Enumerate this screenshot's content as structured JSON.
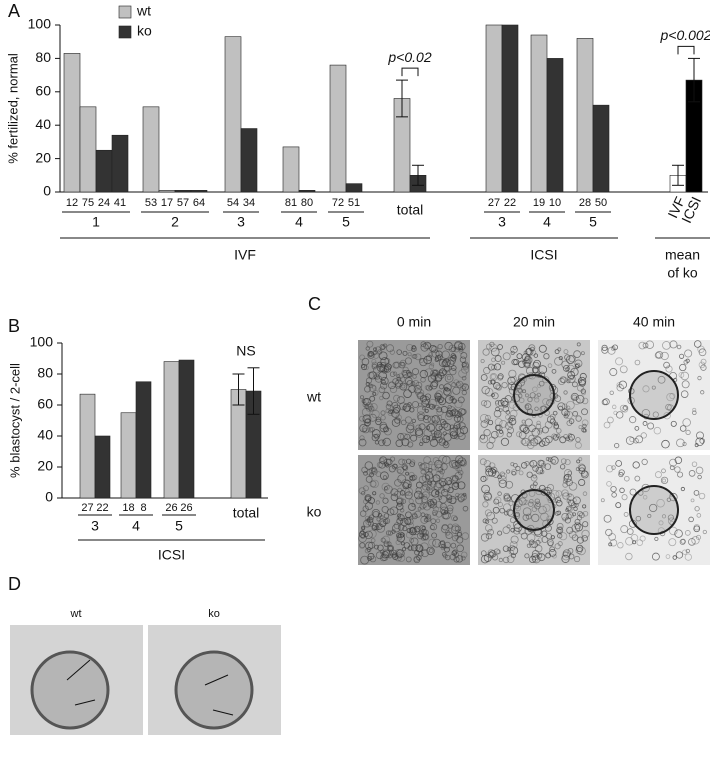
{
  "chart_data": [
    {
      "type": "bar",
      "panel_label": "A",
      "ylabel": "% fertilized, normal",
      "ylim": [
        0,
        100
      ],
      "yticks": [
        0,
        20,
        40,
        60,
        80,
        100
      ],
      "series": [
        {
          "name": "wt",
          "color": "#c0c0c0"
        },
        {
          "name": "ko",
          "color": "#333333"
        }
      ],
      "groups": [
        {
          "label": "1",
          "bars": [
            {
              "value": 83,
              "n": 12,
              "color": "#c0c0c0"
            },
            {
              "value": 51,
              "n": 75,
              "color": "#c0c0c0"
            },
            {
              "value": 25,
              "n": 24,
              "color": "#333333"
            },
            {
              "value": 34,
              "n": 41,
              "color": "#333333"
            }
          ]
        },
        {
          "label": "2",
          "bars": [
            {
              "value": 51,
              "n": 53,
              "color": "#c0c0c0"
            },
            {
              "value": 1,
              "n": 17,
              "color": "#c0c0c0"
            },
            {
              "value": 1,
              "n": 57,
              "color": "#333333"
            },
            {
              "value": 1,
              "n": 64,
              "color": "#333333"
            }
          ]
        },
        {
          "label": "3",
          "bars": [
            {
              "value": 93,
              "n": 54,
              "color": "#c0c0c0"
            },
            {
              "value": 38,
              "n": 34,
              "color": "#333333"
            }
          ]
        },
        {
          "label": "4",
          "bars": [
            {
              "value": 27,
              "n": 81,
              "color": "#c0c0c0"
            },
            {
              "value": 1,
              "n": 80,
              "color": "#333333"
            }
          ]
        },
        {
          "label": "5",
          "bars": [
            {
              "value": 76,
              "n": 72,
              "color": "#c0c0c0"
            },
            {
              "value": 5,
              "n": 51,
              "color": "#333333"
            }
          ]
        },
        {
          "label": "total",
          "annotation": "p<0.02",
          "annotation_bracket": true,
          "bars": [
            {
              "value": 56,
              "error": 11,
              "color": "#c0c0c0"
            },
            {
              "value": 10,
              "error": 6,
              "color": "#333333"
            }
          ]
        },
        {
          "label": "3",
          "bars": [
            {
              "value": 100,
              "n": 27,
              "color": "#c0c0c0"
            },
            {
              "value": 100,
              "n": 22,
              "color": "#333333"
            }
          ]
        },
        {
          "label": "4",
          "bars": [
            {
              "value": 94,
              "n": 19,
              "color": "#c0c0c0"
            },
            {
              "value": 80,
              "n": 10,
              "color": "#333333"
            }
          ]
        },
        {
          "label": "5",
          "bars": [
            {
              "value": 92,
              "n": 28,
              "color": "#c0c0c0"
            },
            {
              "value": 52,
              "n": 50,
              "color": "#333333"
            }
          ]
        },
        {
          "annotation": "p<0.002",
          "annotation_bracket": true,
          "bars": [
            {
              "value": 10,
              "error": 6,
              "label": "IVF",
              "color": "#ffffff"
            },
            {
              "value": 67,
              "error": 13,
              "label": "ICSI",
              "color": "#000000"
            }
          ]
        }
      ],
      "brackets": [
        {
          "label_lines": [
            "IVF"
          ]
        },
        {
          "label_lines": [
            "ICSI"
          ]
        },
        {
          "label_lines": [
            "mean",
            "of ko"
          ]
        }
      ]
    },
    {
      "type": "bar",
      "panel_label": "B",
      "ylabel": "% blastocyst / 2-cell",
      "ylim": [
        0,
        100
      ],
      "yticks": [
        0,
        20,
        40,
        60,
        80,
        100
      ],
      "groups": [
        {
          "label": "3",
          "bars": [
            {
              "value": 67,
              "n": 27,
              "color": "#c0c0c0"
            },
            {
              "value": 40,
              "n": 22,
              "color": "#333333"
            }
          ]
        },
        {
          "label": "4",
          "bars": [
            {
              "value": 55,
              "n": 18,
              "color": "#c0c0c0"
            },
            {
              "value": 75,
              "n": 8,
              "color": "#333333"
            }
          ]
        },
        {
          "label": "5",
          "bars": [
            {
              "value": 88,
              "n": 26,
              "color": "#c0c0c0"
            },
            {
              "value": 89,
              "n": 26,
              "color": "#333333"
            }
          ]
        },
        {
          "label": "total",
          "annotation": "NS",
          "annotation_bracket": false,
          "bars": [
            {
              "value": 70,
              "error": 10,
              "color": "#c0c0c0"
            },
            {
              "value": 69,
              "error": 15,
              "color": "#333333"
            }
          ]
        }
      ],
      "brackets": [
        {
          "label_lines": [
            "ICSI"
          ]
        }
      ]
    }
  ],
  "panel_c": {
    "panel_label": "C",
    "columns": [
      "0 min",
      "20 min",
      "40 min"
    ],
    "rows": [
      "wt",
      "ko"
    ]
  },
  "panel_d": {
    "panel_label": "D",
    "columns": [
      "wt",
      "ko"
    ]
  }
}
